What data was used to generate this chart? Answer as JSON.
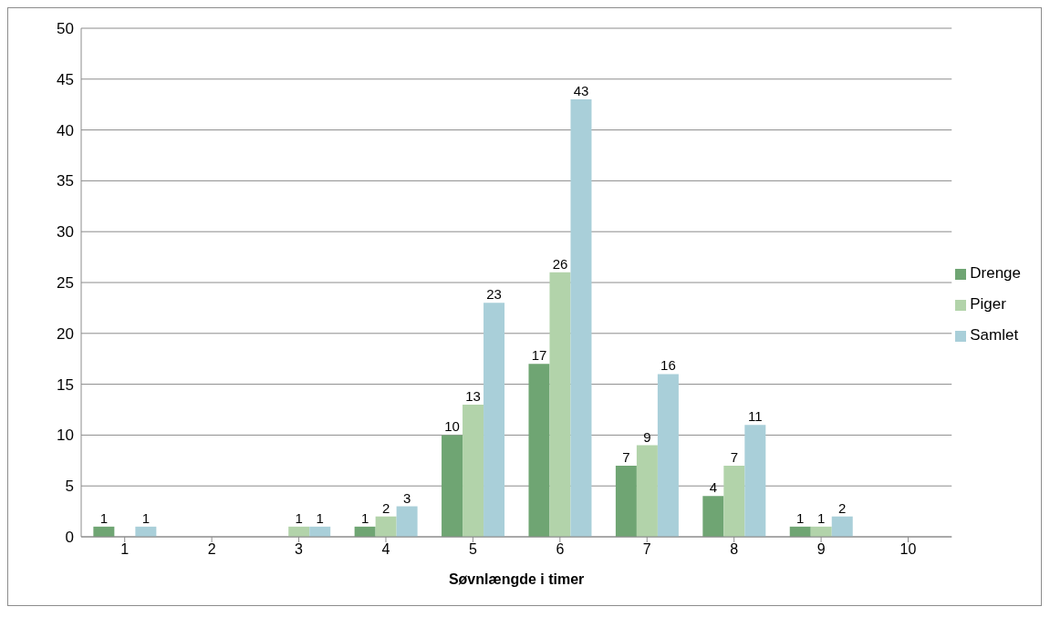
{
  "chart_data": {
    "type": "bar",
    "xlabel": "Søvnlængde i timer",
    "categories": [
      "1",
      "2",
      "3",
      "4",
      "5",
      "6",
      "7",
      "8",
      "9",
      "10"
    ],
    "series": [
      {
        "name": "Drenge",
        "color": "#6fa573",
        "values": [
          1,
          0,
          0,
          1,
          10,
          17,
          7,
          4,
          1,
          0
        ],
        "value_labels": [
          "1",
          null,
          null,
          "1",
          "10",
          "17",
          "7",
          "4",
          "1",
          null
        ]
      },
      {
        "name": "Piger",
        "color": "#b2d3aa",
        "values": [
          0,
          0,
          1,
          2,
          13,
          26,
          9,
          7,
          1,
          0
        ],
        "value_labels": [
          null,
          null,
          "1",
          "2",
          "13",
          "26",
          "9",
          "7",
          "1",
          null
        ]
      },
      {
        "name": "Samlet",
        "color": "#a9cfd9",
        "values": [
          1,
          0,
          1,
          3,
          23,
          43,
          16,
          11,
          2,
          0
        ],
        "value_labels": [
          "1",
          null,
          "1",
          "3",
          "23",
          "43",
          "16",
          "11",
          "2",
          null
        ]
      }
    ],
    "ylim": [
      0,
      50
    ],
    "yticks": [
      0,
      5,
      10,
      15,
      20,
      25,
      30,
      35,
      40,
      45,
      50
    ],
    "grid": "y",
    "legend": "right"
  }
}
